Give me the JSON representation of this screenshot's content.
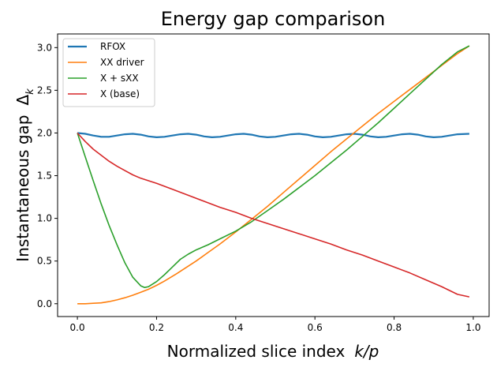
{
  "chart_data": {
    "type": "line",
    "title": "Energy gap comparison",
    "xlabel": "Normalized slice index",
    "xlabel_math": "k/p",
    "ylabel": "Instantaneous gap",
    "ylabel_math": "Δ",
    "ylabel_math_sub": "k",
    "xlim": [
      -0.05,
      1.04
    ],
    "ylim": [
      -0.15,
      3.16
    ],
    "xticks": [
      "0.0",
      "0.2",
      "0.4",
      "0.6",
      "0.8",
      "1.0"
    ],
    "yticks": [
      "0.0",
      "0.5",
      "1.0",
      "1.5",
      "2.0",
      "2.5",
      "3.0"
    ],
    "grid": false,
    "legend_position": "top-left",
    "series": [
      {
        "name": "RFOX",
        "color": "#1f77b4",
        "x": [
          0.0,
          0.02,
          0.04,
          0.06,
          0.08,
          0.1,
          0.12,
          0.14,
          0.16,
          0.18,
          0.2,
          0.22,
          0.24,
          0.26,
          0.28,
          0.3,
          0.32,
          0.34,
          0.36,
          0.38,
          0.4,
          0.42,
          0.44,
          0.46,
          0.48,
          0.5,
          0.52,
          0.54,
          0.56,
          0.58,
          0.6,
          0.62,
          0.64,
          0.66,
          0.68,
          0.7,
          0.72,
          0.74,
          0.76,
          0.78,
          0.8,
          0.82,
          0.84,
          0.86,
          0.88,
          0.9,
          0.92,
          0.94,
          0.96,
          0.99
        ],
        "y": [
          2.0,
          1.99,
          1.97,
          1.955,
          1.955,
          1.97,
          1.985,
          1.99,
          1.98,
          1.96,
          1.95,
          1.955,
          1.97,
          1.985,
          1.99,
          1.98,
          1.96,
          1.95,
          1.955,
          1.97,
          1.985,
          1.99,
          1.98,
          1.96,
          1.95,
          1.955,
          1.97,
          1.985,
          1.99,
          1.98,
          1.96,
          1.95,
          1.955,
          1.97,
          1.985,
          1.99,
          1.98,
          1.96,
          1.95,
          1.955,
          1.97,
          1.985,
          1.99,
          1.98,
          1.96,
          1.95,
          1.955,
          1.97,
          1.985,
          1.99
        ]
      },
      {
        "name": "XX driver",
        "color": "#ff7f0e",
        "x": [
          0.0,
          0.02,
          0.04,
          0.06,
          0.08,
          0.1,
          0.12,
          0.14,
          0.16,
          0.18,
          0.2,
          0.22,
          0.25,
          0.28,
          0.3,
          0.33,
          0.36,
          0.4,
          0.44,
          0.48,
          0.52,
          0.56,
          0.6,
          0.64,
          0.68,
          0.72,
          0.76,
          0.8,
          0.84,
          0.88,
          0.92,
          0.96,
          0.99
        ],
        "y": [
          0.0,
          0.0,
          0.005,
          0.01,
          0.025,
          0.045,
          0.07,
          0.1,
          0.135,
          0.17,
          0.215,
          0.265,
          0.35,
          0.44,
          0.5,
          0.6,
          0.7,
          0.84,
          0.99,
          1.14,
          1.3,
          1.46,
          1.62,
          1.78,
          1.93,
          2.08,
          2.23,
          2.37,
          2.51,
          2.65,
          2.79,
          2.93,
          3.02
        ]
      },
      {
        "name": "X + sXX",
        "color": "#2ca02c",
        "x": [
          0.0,
          0.02,
          0.04,
          0.06,
          0.08,
          0.1,
          0.12,
          0.14,
          0.16,
          0.17,
          0.18,
          0.2,
          0.22,
          0.24,
          0.26,
          0.28,
          0.3,
          0.33,
          0.36,
          0.4,
          0.44,
          0.48,
          0.52,
          0.56,
          0.6,
          0.64,
          0.68,
          0.72,
          0.76,
          0.8,
          0.84,
          0.88,
          0.92,
          0.96,
          0.99
        ],
        "y": [
          2.0,
          1.72,
          1.44,
          1.17,
          0.92,
          0.69,
          0.48,
          0.31,
          0.21,
          0.19,
          0.2,
          0.26,
          0.34,
          0.43,
          0.52,
          0.58,
          0.63,
          0.69,
          0.76,
          0.85,
          0.96,
          1.09,
          1.22,
          1.36,
          1.5,
          1.65,
          1.8,
          1.96,
          2.12,
          2.29,
          2.46,
          2.63,
          2.8,
          2.95,
          3.02
        ]
      },
      {
        "name": "X (base)",
        "color": "#d62728",
        "x": [
          0.0,
          0.02,
          0.04,
          0.06,
          0.08,
          0.1,
          0.12,
          0.14,
          0.16,
          0.18,
          0.2,
          0.24,
          0.28,
          0.32,
          0.36,
          0.4,
          0.44,
          0.48,
          0.52,
          0.56,
          0.6,
          0.64,
          0.68,
          0.72,
          0.76,
          0.8,
          0.84,
          0.88,
          0.92,
          0.96,
          0.99
        ],
        "y": [
          2.0,
          1.9,
          1.81,
          1.74,
          1.67,
          1.61,
          1.56,
          1.51,
          1.47,
          1.44,
          1.41,
          1.34,
          1.27,
          1.2,
          1.13,
          1.07,
          1.0,
          0.94,
          0.88,
          0.82,
          0.76,
          0.7,
          0.63,
          0.57,
          0.5,
          0.43,
          0.36,
          0.28,
          0.2,
          0.11,
          0.08
        ]
      }
    ]
  }
}
